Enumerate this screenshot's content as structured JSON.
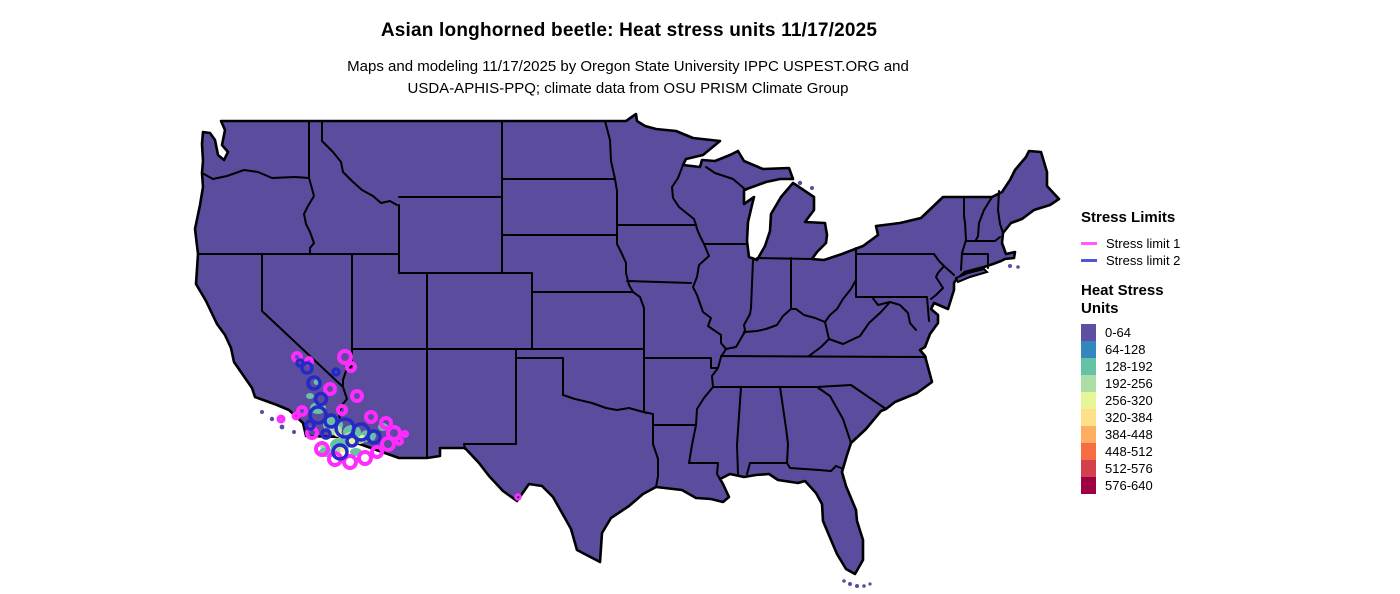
{
  "title": "Asian longhorned beetle: Heat stress units 11/17/2025",
  "subtitle": {
    "line1": "Maps and modeling 11/17/2025 by Oregon State University IPPC USPEST.ORG and",
    "line2": "USDA-APHIS-PPQ; climate data from OSU PRISM Climate Group"
  },
  "legend": {
    "stress_limits": {
      "heading": "Stress Limits",
      "items": [
        {
          "label": "Stress limit 1",
          "color": "#ff5cff"
        },
        {
          "label": "Stress limit 2",
          "color": "#5353dd"
        }
      ]
    },
    "heat_stress": {
      "heading_line1": "Heat Stress",
      "heading_line2": "Units",
      "bins": [
        {
          "label": "0-64",
          "color": "#5e4fa2"
        },
        {
          "label": "64-128",
          "color": "#3288bd"
        },
        {
          "label": "128-192",
          "color": "#66c2a5"
        },
        {
          "label": "192-256",
          "color": "#abdda4"
        },
        {
          "label": "256-320",
          "color": "#e6f598"
        },
        {
          "label": "320-384",
          "color": "#fee08b"
        },
        {
          "label": "384-448",
          "color": "#fdae61"
        },
        {
          "label": "448-512",
          "color": "#f46d43"
        },
        {
          "label": "512-576",
          "color": "#d53e4f"
        },
        {
          "label": "576-640",
          "color": "#9e0142"
        }
      ]
    }
  },
  "map": {
    "land_fill": "#5c4c9e",
    "border_color": "#000000",
    "background": "#ffffff",
    "stress_limit1_contour_color": "#ff2bff",
    "stress_limit2_contour_color": "#2629c8",
    "dominant_bin": "0-64",
    "hotspot_region": "southwestern Arizona / southeastern California (fills up to 256-320 range)",
    "minor_marks": "small stress limit 1 contour near Big Bend, Texas"
  },
  "chart_data": {
    "type": "heatmap",
    "title": "Asian longhorned beetle: Heat stress units 11/17/2025",
    "legend_position": "right",
    "bins": [
      "0-64",
      "64-128",
      "128-192",
      "192-256",
      "256-320",
      "320-384",
      "384-448",
      "448-512",
      "512-576",
      "576-640"
    ],
    "bin_colors": [
      "#5e4fa2",
      "#3288bd",
      "#66c2a5",
      "#abdda4",
      "#e6f598",
      "#fee08b",
      "#fdae61",
      "#f46d43",
      "#d53e4f",
      "#9e0142"
    ],
    "contours": [
      "Stress limit 1",
      "Stress limit 2"
    ],
    "notes": "Continental US almost entirely in 0-64 bin; elevated heat stress with stress-limit contours concentrated in SW Arizona / SE California desert"
  }
}
